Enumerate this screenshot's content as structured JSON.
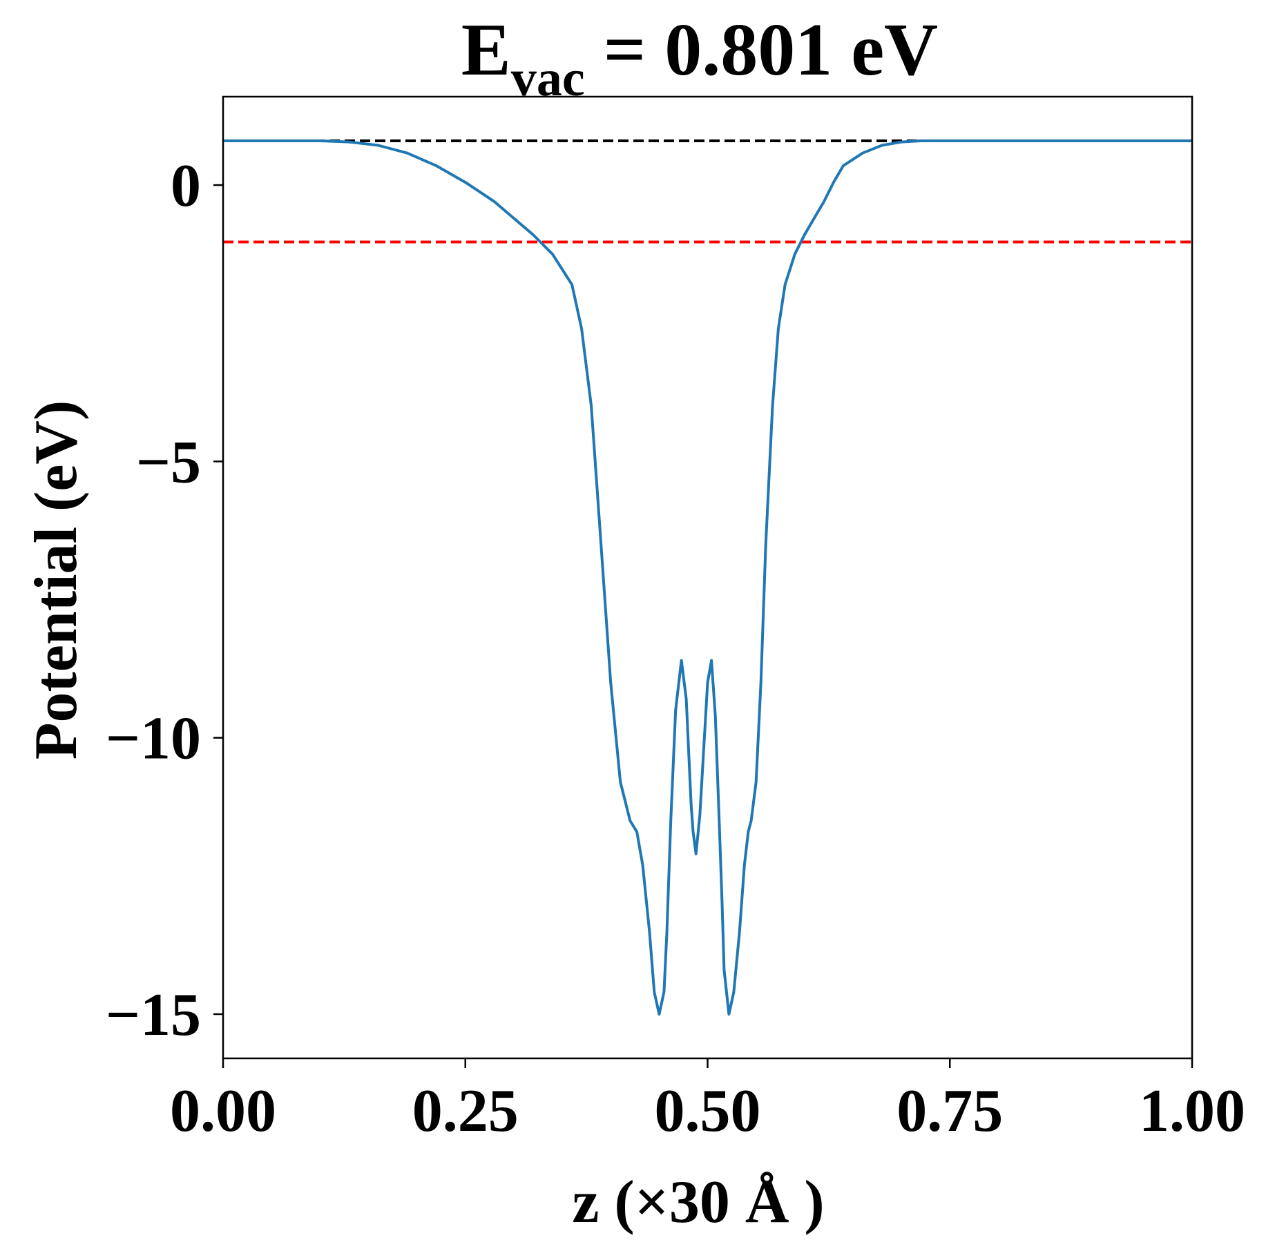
{
  "chart_data": {
    "type": "line",
    "title": {
      "main": "E",
      "subscript": "vac",
      "rest": " = 0.801 eV"
    },
    "xlabel": "z (×30 Å )",
    "ylabel": "Potential (eV)",
    "xlim": [
      0.0,
      1.0
    ],
    "ylim": [
      -15.8,
      1.6
    ],
    "xticks": [
      0.0,
      0.25,
      0.5,
      0.75,
      1.0
    ],
    "xtick_labels": [
      "0.00",
      "0.25",
      "0.50",
      "0.75",
      "1.00"
    ],
    "yticks": [
      0,
      -5,
      -10,
      -15
    ],
    "ytick_labels": [
      "0",
      "−5",
      "−10",
      "−15"
    ],
    "grid": false,
    "legend": "none",
    "series": [
      {
        "color": "#1f77b4",
        "x": [
          0.0,
          0.05,
          0.1,
          0.13,
          0.16,
          0.19,
          0.22,
          0.25,
          0.28,
          0.3,
          0.32,
          0.34,
          0.36,
          0.37,
          0.38,
          0.39,
          0.4,
          0.41,
          0.42,
          0.427,
          0.433,
          0.44,
          0.445,
          0.45,
          0.455,
          0.458,
          0.462,
          0.467,
          0.473,
          0.478,
          0.483,
          0.485,
          0.488,
          0.492,
          0.496,
          0.5,
          0.504,
          0.508,
          0.512,
          0.515,
          0.517,
          0.522,
          0.527,
          0.533,
          0.538,
          0.542,
          0.545,
          0.55,
          0.555,
          0.56,
          0.567,
          0.573,
          0.58,
          0.59,
          0.6,
          0.61,
          0.62,
          0.63,
          0.64,
          0.66,
          0.68,
          0.7,
          0.72,
          0.75,
          0.78,
          0.81,
          0.84,
          0.87,
          0.9,
          0.95,
          1.0
        ],
        "y": [
          0.8,
          0.8,
          0.8,
          0.78,
          0.72,
          0.58,
          0.35,
          0.05,
          -0.3,
          -0.6,
          -0.9,
          -1.25,
          -1.8,
          -2.6,
          -4.0,
          -6.5,
          -9.0,
          -10.8,
          -11.5,
          -11.7,
          -12.3,
          -13.5,
          -14.6,
          -15.0,
          -14.6,
          -13.5,
          -11.5,
          -9.5,
          -8.6,
          -9.3,
          -11.2,
          -11.7,
          -12.1,
          -11.4,
          -10.2,
          -9.0,
          -8.6,
          -9.6,
          -11.5,
          -13.0,
          -14.2,
          -15.0,
          -14.6,
          -13.5,
          -12.3,
          -11.7,
          -11.5,
          -10.8,
          -9.0,
          -6.5,
          -4.0,
          -2.6,
          -1.8,
          -1.25,
          -0.9,
          -0.6,
          -0.3,
          0.05,
          0.35,
          0.58,
          0.72,
          0.78,
          0.8,
          0.8,
          0.8,
          0.8,
          0.8,
          0.8,
          0.8,
          0.8,
          0.8
        ]
      }
    ],
    "reference_lines": [
      {
        "y": 0.801,
        "color": "#000000",
        "style": "dashed"
      },
      {
        "y": -1.03,
        "color": "#ff0000",
        "style": "dashed"
      }
    ]
  }
}
